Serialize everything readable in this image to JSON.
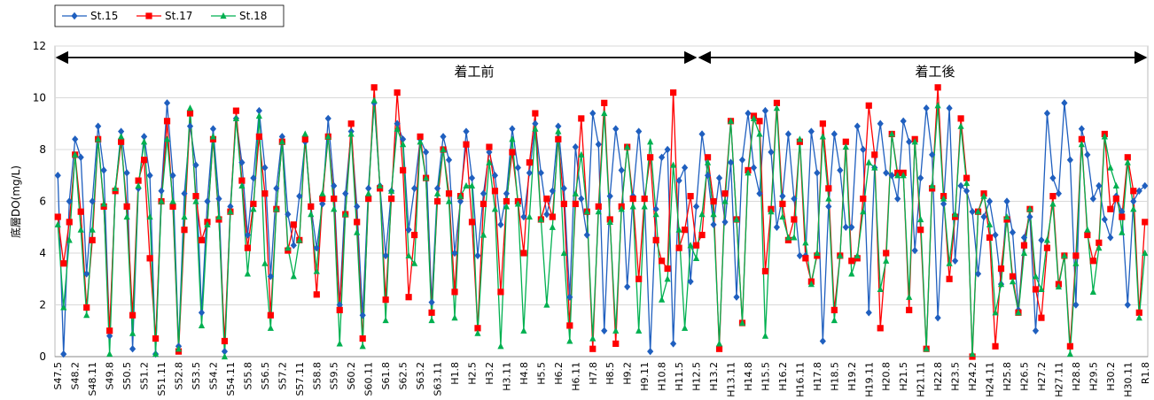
{
  "chart_data": {
    "type": "line",
    "y_label": "底層DO(mg/L)",
    "annotations": [
      "着工前",
      "着工後"
    ],
    "ylim": [
      0,
      12
    ],
    "yticks": [
      0,
      2,
      4,
      6,
      8,
      10,
      12
    ],
    "grid": true,
    "legend": "top-left",
    "categories": [
      "S47.5",
      null,
      null,
      "S48.2",
      null,
      null,
      "S48.11",
      null,
      null,
      "S49.8",
      null,
      null,
      "S50.5",
      null,
      null,
      "S51.2",
      null,
      null,
      "S51.11",
      null,
      null,
      "S52.8",
      null,
      null,
      "S53.5",
      null,
      null,
      "S54.2",
      null,
      null,
      "S54.11",
      null,
      null,
      "S55.8",
      null,
      null,
      "S56.5",
      null,
      null,
      "S57.2",
      null,
      null,
      "S57.11",
      null,
      null,
      "S58.8",
      null,
      null,
      "S59.5",
      null,
      null,
      "S60.2",
      null,
      null,
      "S60.11",
      null,
      null,
      "S61.8",
      null,
      null,
      "S62.5",
      null,
      null,
      "S63.2",
      null,
      null,
      "S63.11",
      null,
      null,
      "H1.8",
      null,
      null,
      "H2.5",
      null,
      null,
      "H3.2",
      null,
      null,
      "H3.11",
      null,
      null,
      "H4.8",
      null,
      null,
      "H5.5",
      null,
      null,
      "H6.2",
      null,
      null,
      "H6.11",
      null,
      null,
      "H7.8",
      null,
      null,
      "H8.5",
      null,
      null,
      "H9.2",
      null,
      null,
      "H9.11",
      null,
      null,
      "H10.8",
      null,
      null,
      "H11.5",
      null,
      null,
      "H12.5",
      null,
      null,
      "H13.2",
      null,
      null,
      "H13.11",
      null,
      null,
      "H14.8",
      null,
      null,
      "H15.5",
      null,
      null,
      "H16.2",
      null,
      null,
      "H16.11",
      null,
      null,
      "H17.8",
      null,
      null,
      "H18.5",
      null,
      null,
      "H19.2",
      null,
      null,
      "H19.11",
      null,
      null,
      "H20.8",
      null,
      null,
      "H21.5",
      null,
      null,
      "H21.11",
      null,
      null,
      "H22.8",
      null,
      null,
      "H23.5",
      null,
      null,
      "H24.2",
      null,
      null,
      "H24.11",
      null,
      null,
      "H25.8",
      null,
      null,
      "H26.5",
      null,
      null,
      "H27.2",
      null,
      null,
      "H27.11",
      null,
      null,
      "H28.8",
      null,
      null,
      "H29.5",
      null,
      null,
      "H30.2",
      null,
      null,
      "H30.11",
      null,
      null,
      "R1.8"
    ],
    "series": [
      {
        "name": "St.15",
        "color": "#1f5fbf",
        "marker": "diamond",
        "values": [
          7.0,
          0.1,
          6.0,
          8.4,
          7.7,
          3.2,
          6.0,
          8.9,
          7.2,
          0.8,
          6.4,
          8.7,
          7.1,
          0.3,
          6.5,
          8.5,
          7.0,
          0.1,
          6.4,
          9.8,
          7.0,
          0.4,
          6.3,
          8.9,
          7.4,
          1.7,
          6.0,
          8.8,
          6.1,
          0.2,
          5.8,
          9.2,
          7.5,
          4.7,
          6.9,
          9.5,
          7.3,
          3.1,
          6.5,
          8.5,
          5.5,
          4.3,
          6.2,
          8.3,
          5.8,
          4.2,
          5.9,
          9.2,
          6.6,
          2.0,
          6.3,
          8.7,
          5.8,
          1.6,
          6.5,
          9.8,
          6.6,
          3.9,
          6.4,
          9.0,
          8.4,
          4.9,
          6.5,
          8.4,
          7.9,
          2.1,
          6.5,
          8.5,
          7.6,
          4.0,
          6.0,
          8.7,
          6.9,
          3.9,
          6.3,
          7.9,
          7.0,
          5.1,
          6.3,
          8.8,
          7.3,
          5.4,
          7.1,
          9.0,
          7.1,
          5.5,
          6.4,
          8.9,
          6.5,
          2.3,
          8.1,
          6.1,
          4.7,
          9.4,
          8.2,
          1.0,
          6.2,
          8.8,
          7.2,
          2.7,
          6.2,
          8.7,
          6.1,
          0.2,
          5.7,
          7.7,
          8.0,
          0.5,
          6.8,
          7.3,
          2.9,
          5.8,
          8.6,
          7.0,
          5.1,
          6.9,
          5.2,
          7.5,
          2.3,
          7.6,
          9.4,
          7.3,
          6.3,
          9.5,
          7.9,
          5.0,
          6.2,
          8.6,
          6.1,
          3.9,
          3.9,
          8.7,
          7.1,
          0.6,
          5.8,
          8.6,
          7.2,
          5.0,
          5.0,
          8.9,
          8.0,
          1.7,
          7.3,
          9.0,
          7.1,
          7.0,
          6.1,
          9.1,
          8.3,
          4.1,
          6.9,
          9.6,
          7.8,
          1.5,
          5.9,
          9.6,
          3.7,
          6.6,
          6.4,
          5.6,
          3.2,
          5.4,
          6.0,
          4.7,
          2.8,
          6.0,
          4.8,
          1.8,
          4.6,
          5.4,
          1.0,
          4.5,
          9.4,
          6.9,
          6.3,
          9.8,
          7.6,
          2.0,
          8.8,
          7.8,
          6.1,
          6.6,
          5.3,
          4.6,
          6.2,
          5.6,
          2.0,
          6.0,
          6.4,
          6.6
        ]
      },
      {
        "name": "St.17",
        "color": "#ff0000",
        "marker": "square",
        "values": [
          5.4,
          3.6,
          5.2,
          7.8,
          5.6,
          1.9,
          4.5,
          8.4,
          5.8,
          1.0,
          6.4,
          8.3,
          5.8,
          1.6,
          6.8,
          7.6,
          3.8,
          0.7,
          6.0,
          9.1,
          5.8,
          0.2,
          4.9,
          9.4,
          6.2,
          4.5,
          5.2,
          8.4,
          5.3,
          0.6,
          5.6,
          9.5,
          6.8,
          4.2,
          5.9,
          8.5,
          6.3,
          1.6,
          5.7,
          8.3,
          4.1,
          5.1,
          4.5,
          8.4,
          5.8,
          2.4,
          6.1,
          8.5,
          6.1,
          1.8,
          5.5,
          9.0,
          5.2,
          0.7,
          6.1,
          10.4,
          6.5,
          2.2,
          6.1,
          10.2,
          7.2,
          2.3,
          4.7,
          8.5,
          6.9,
          1.7,
          6.0,
          8.0,
          6.3,
          2.5,
          6.2,
          8.2,
          5.2,
          1.1,
          5.9,
          8.1,
          6.4,
          2.5,
          6.0,
          7.9,
          6.0,
          4.0,
          7.5,
          9.4,
          5.3,
          6.1,
          5.4,
          8.4,
          5.9,
          1.2,
          5.9,
          9.2,
          5.6,
          0.3,
          5.8,
          9.8,
          5.3,
          0.5,
          5.8,
          8.1,
          6.1,
          3.0,
          6.1,
          7.7,
          4.5,
          3.7,
          3.4,
          10.2,
          4.2,
          4.9,
          6.2,
          4.3,
          4.7,
          7.7,
          6.0,
          0.3,
          6.3,
          9.1,
          5.3,
          1.3,
          7.2,
          9.3,
          9.1,
          3.3,
          5.7,
          9.8,
          5.9,
          4.5,
          5.3,
          8.3,
          3.8,
          2.9,
          3.9,
          9.0,
          6.5,
          1.8,
          3.9,
          8.3,
          3.7,
          3.8,
          6.1,
          9.7,
          7.8,
          1.1,
          4.0,
          8.6,
          7.1,
          7.1,
          1.8,
          8.4,
          4.9,
          0.3,
          6.5,
          10.4,
          6.2,
          3.0,
          5.4,
          9.2,
          6.9,
          0.0,
          5.6,
          6.3,
          4.6,
          0.4,
          3.4,
          5.3,
          3.1,
          1.7,
          4.3,
          5.7,
          2.6,
          1.5,
          4.2,
          6.2,
          2.8,
          3.9,
          0.4,
          3.9,
          8.4,
          4.7,
          3.7,
          4.4,
          8.6,
          5.7,
          6.1,
          5.4,
          7.7,
          6.4,
          1.7,
          5.2
        ]
      },
      {
        "name": "St.18",
        "color": "#00b050",
        "marker": "triangle",
        "values": [
          5.1,
          1.9,
          4.5,
          7.8,
          4.9,
          1.6,
          4.9,
          8.4,
          5.9,
          0.1,
          6.5,
          8.5,
          5.4,
          0.9,
          6.6,
          8.3,
          5.4,
          0.1,
          6.0,
          8.4,
          6.0,
          0.3,
          5.4,
          9.6,
          6.0,
          1.2,
          5.1,
          8.5,
          5.4,
          0.0,
          5.6,
          9.2,
          6.6,
          3.2,
          5.7,
          9.3,
          3.6,
          1.1,
          5.7,
          8.3,
          4.2,
          3.1,
          4.5,
          8.6,
          5.5,
          3.3,
          6.3,
          8.5,
          5.7,
          0.5,
          5.5,
          8.6,
          4.8,
          0.4,
          6.3,
          9.9,
          6.6,
          1.4,
          6.4,
          8.8,
          8.2,
          3.9,
          3.6,
          8.3,
          6.9,
          1.4,
          6.3,
          8.0,
          6.0,
          1.5,
          6.2,
          6.6,
          6.6,
          0.9,
          4.7,
          7.5,
          5.7,
          0.4,
          5.8,
          8.4,
          5.9,
          1.0,
          5.4,
          8.8,
          5.3,
          2.0,
          5.0,
          8.7,
          4.0,
          0.6,
          6.3,
          7.8,
          5.6,
          0.7,
          5.6,
          9.4,
          5.2,
          1.0,
          5.7,
          8.1,
          5.8,
          1.0,
          5.8,
          8.3,
          5.5,
          2.2,
          3.0,
          7.4,
          4.9,
          1.1,
          4.3,
          3.8,
          5.5,
          7.5,
          5.5,
          0.5,
          6.0,
          9.1,
          5.3,
          1.3,
          7.1,
          9.2,
          8.6,
          0.8,
          5.6,
          9.6,
          5.4,
          4.6,
          4.6,
          8.4,
          4.4,
          2.8,
          4.0,
          8.5,
          6.1,
          1.4,
          3.9,
          8.1,
          3.2,
          3.9,
          5.6,
          7.5,
          7.3,
          2.6,
          3.7,
          8.6,
          7.0,
          7.0,
          2.3,
          8.3,
          5.3,
          0.3,
          6.6,
          9.7,
          6.1,
          3.6,
          5.5,
          8.9,
          6.7,
          0.1,
          5.6,
          6.2,
          5.1,
          1.7,
          2.8,
          5.4,
          2.9,
          1.7,
          4.0,
          5.7,
          3.1,
          2.6,
          4.5,
          5.9,
          2.7,
          3.9,
          0.1,
          3.6,
          8.2,
          4.9,
          2.5,
          4.2,
          8.5,
          7.3,
          6.6,
          4.8,
          7.5,
          5.7,
          1.5,
          4.0
        ]
      }
    ]
  }
}
